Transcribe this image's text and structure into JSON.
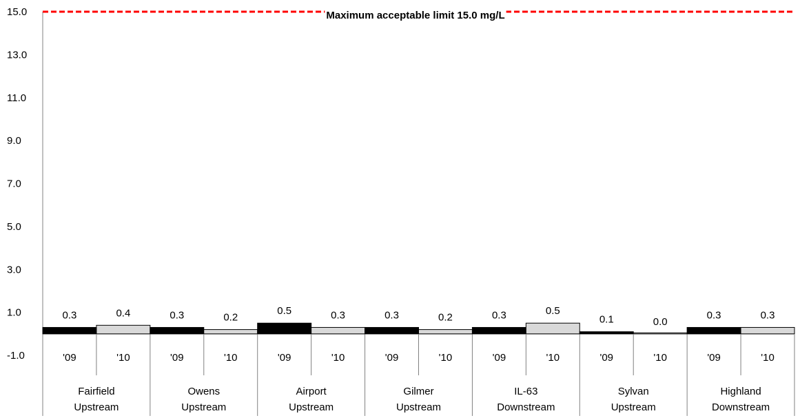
{
  "chart_data": {
    "type": "bar",
    "ylim": [
      -1.0,
      15.0
    ],
    "y_ticks": [
      "-1.0",
      "1.0",
      "3.0",
      "5.0",
      "7.0",
      "9.0",
      "11.0",
      "13.0",
      "15.0"
    ],
    "grid": false,
    "groups": [
      {
        "name_line1": "Fairfield",
        "name_line2": "Upstream"
      },
      {
        "name_line1": "Owens",
        "name_line2": "Upstream"
      },
      {
        "name_line1": "Airport",
        "name_line2": "Upstream"
      },
      {
        "name_line1": "Gilmer",
        "name_line2": "Upstream"
      },
      {
        "name_line1": "IL-63",
        "name_line2": "Downstream"
      },
      {
        "name_line1": "Sylvan",
        "name_line2": "Upstream"
      },
      {
        "name_line1": "Highland",
        "name_line2": "Downstream"
      }
    ],
    "years": [
      "'09",
      "'10"
    ],
    "year_colors": [
      "#000000",
      "#d9d9d9"
    ],
    "values": [
      [
        0.3,
        0.4
      ],
      [
        0.3,
        0.2
      ],
      [
        0.5,
        0.3
      ],
      [
        0.3,
        0.2
      ],
      [
        0.3,
        0.5
      ],
      [
        0.1,
        0.0
      ],
      [
        0.3,
        0.3
      ]
    ],
    "value_labels": [
      [
        "0.3",
        "0.4"
      ],
      [
        "0.3",
        "0.2"
      ],
      [
        "0.5",
        "0.3"
      ],
      [
        "0.3",
        "0.2"
      ],
      [
        "0.3",
        "0.5"
      ],
      [
        "0.1",
        "0.0"
      ],
      [
        "0.3",
        "0.3"
      ]
    ],
    "reference_line": {
      "value": 15.0,
      "label": "Maximum acceptable limit 15.0 mg/L",
      "color": "#ff0000"
    }
  }
}
